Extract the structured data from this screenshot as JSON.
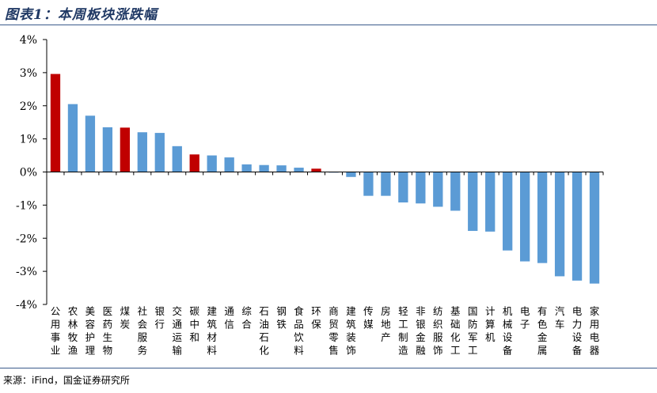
{
  "title": "图表1：本周板块涨跌幅",
  "source": "来源：iFind，国金证券研究所",
  "chart_data": {
    "type": "bar",
    "title": "",
    "xlabel": "",
    "ylabel": "",
    "ylim": [
      -4,
      4
    ],
    "yticks": [
      "-4%",
      "-3%",
      "-2%",
      "-1%",
      "0%",
      "1%",
      "2%",
      "3%",
      "4%"
    ],
    "grid": false,
    "colors": {
      "default": "#5b9bd5",
      "highlight": "#c00000"
    },
    "categories": [
      "公用事业",
      "农林牧渔",
      "美容护理",
      "医药生物",
      "煤炭",
      "社会服务",
      "银行",
      "交通运输",
      "碳中和",
      "建筑材料",
      "通信",
      "综合",
      "石油石化",
      "钢铁",
      "食品饮料",
      "环保",
      "商贸零售",
      "建筑装饰",
      "传媒",
      "房地产",
      "轻工制造",
      "非银金融",
      "纺织服饰",
      "基础化工",
      "国防军工",
      "计算机",
      "机械设备",
      "电子",
      "有色金属",
      "汽车",
      "电力设备",
      "家用电器"
    ],
    "values": [
      2.96,
      2.05,
      1.7,
      1.35,
      1.34,
      1.2,
      1.18,
      0.78,
      0.53,
      0.5,
      0.44,
      0.23,
      0.21,
      0.2,
      0.13,
      0.1,
      -0.01,
      -0.15,
      -0.72,
      -0.72,
      -0.92,
      -0.95,
      -1.05,
      -1.17,
      -1.78,
      -1.8,
      -2.37,
      -2.7,
      -2.75,
      -3.15,
      -3.28,
      -3.37
    ],
    "highlight": [
      "公用事业",
      "煤炭",
      "碳中和",
      "环保"
    ]
  }
}
